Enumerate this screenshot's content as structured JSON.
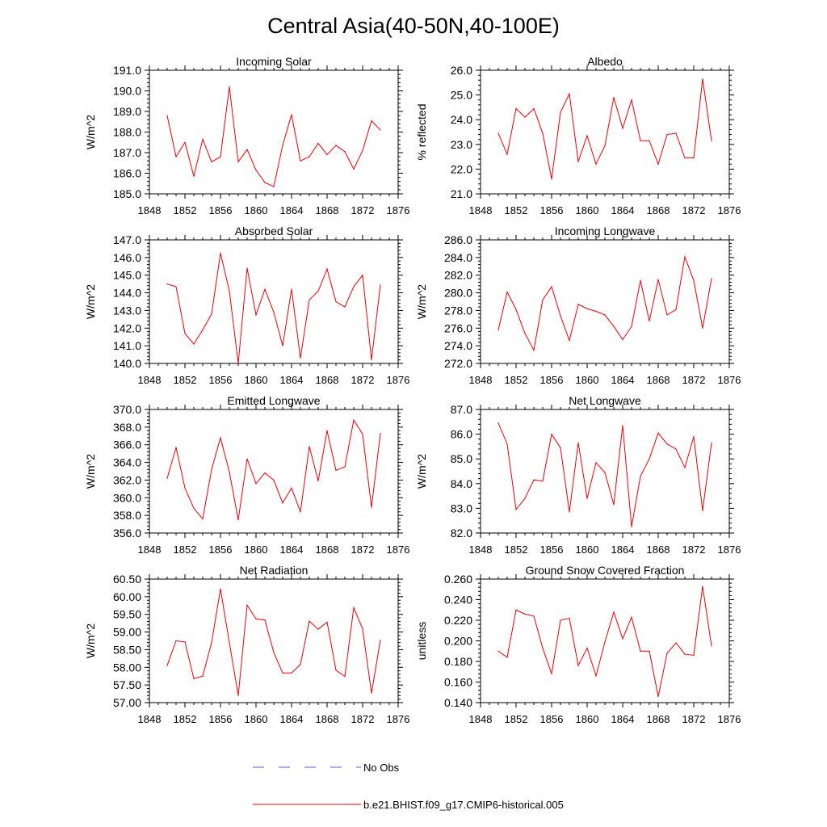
{
  "figure": {
    "title": "Central Asia(40-50N,40-100E)",
    "legend": {
      "obs_label": "No Obs",
      "model_label": "b.e21.BHIST.f09_g17.CMIP6-historical.005"
    },
    "colors": {
      "model_line": "#e8000b",
      "obs_line": "#5a5aff",
      "axis": "#000000"
    }
  },
  "chart_data": [
    {
      "type": "line",
      "title": "Incoming Solar",
      "xlabel": "",
      "ylabel": "W/m^2",
      "xlim": [
        1848,
        1876
      ],
      "xticks": [
        1848,
        1852,
        1856,
        1860,
        1864,
        1868,
        1872,
        1876
      ],
      "ylim": [
        185.0,
        191.0
      ],
      "yticks": [
        185.0,
        186.0,
        187.0,
        188.0,
        189.0,
        190.0,
        191.0
      ],
      "ytick_labels": [
        "185.0",
        "186.0",
        "187.0",
        "188.0",
        "189.0",
        "190.0",
        "191.0"
      ],
      "x": [
        1850,
        1851,
        1852,
        1853,
        1854,
        1855,
        1856,
        1857,
        1858,
        1859,
        1860,
        1861,
        1862,
        1863,
        1864,
        1865,
        1866,
        1867,
        1868,
        1869,
        1870,
        1871,
        1872,
        1873,
        1874
      ],
      "series": [
        {
          "name": "b.e21.BHIST.f09_g17.CMIP6-historical.005",
          "values": [
            188.8,
            186.8,
            187.5,
            185.85,
            187.65,
            186.55,
            186.8,
            190.2,
            186.55,
            187.15,
            186.15,
            185.55,
            185.35,
            187.35,
            188.85,
            186.6,
            186.8,
            187.45,
            186.9,
            187.35,
            187.05,
            186.2,
            187.1,
            188.55,
            188.1
          ]
        }
      ]
    },
    {
      "type": "line",
      "title": "Albedo",
      "xlabel": "",
      "ylabel": "% reflected",
      "xlim": [
        1848,
        1876
      ],
      "xticks": [
        1848,
        1852,
        1856,
        1860,
        1864,
        1868,
        1872,
        1876
      ],
      "ylim": [
        21.0,
        26.0
      ],
      "yticks": [
        21.0,
        22.0,
        23.0,
        24.0,
        25.0,
        26.0
      ],
      "ytick_labels": [
        "21.0",
        "22.0",
        "23.0",
        "24.0",
        "25.0",
        "26.0"
      ],
      "x": [
        1850,
        1851,
        1852,
        1853,
        1854,
        1855,
        1856,
        1857,
        1858,
        1859,
        1860,
        1861,
        1862,
        1863,
        1864,
        1865,
        1866,
        1867,
        1868,
        1869,
        1870,
        1871,
        1872,
        1873,
        1874
      ],
      "series": [
        {
          "name": "b.e21.BHIST.f09_g17.CMIP6-historical.005",
          "values": [
            23.45,
            22.6,
            24.45,
            24.1,
            24.45,
            23.45,
            21.6,
            24.3,
            25.05,
            22.3,
            23.35,
            22.2,
            22.95,
            24.9,
            23.65,
            24.8,
            23.15,
            23.15,
            22.2,
            23.4,
            23.45,
            22.45,
            22.45,
            25.65,
            23.15
          ]
        }
      ]
    },
    {
      "type": "line",
      "title": "Absorbed Solar",
      "xlabel": "",
      "ylabel": "W/m^2",
      "xlim": [
        1848,
        1876
      ],
      "xticks": [
        1848,
        1852,
        1856,
        1860,
        1864,
        1868,
        1872,
        1876
      ],
      "ylim": [
        140.0,
        147.0
      ],
      "yticks": [
        140.0,
        141.0,
        142.0,
        143.0,
        144.0,
        145.0,
        146.0,
        147.0
      ],
      "ytick_labels": [
        "140.0",
        "141.0",
        "142.0",
        "143.0",
        "144.0",
        "145.0",
        "146.0",
        "147.0"
      ],
      "x": [
        1850,
        1851,
        1852,
        1853,
        1854,
        1855,
        1856,
        1857,
        1858,
        1859,
        1860,
        1861,
        1862,
        1863,
        1864,
        1865,
        1866,
        1867,
        1868,
        1869,
        1870,
        1871,
        1872,
        1873,
        1874
      ],
      "series": [
        {
          "name": "b.e21.BHIST.f09_g17.CMIP6-historical.005",
          "values": [
            144.5,
            144.35,
            141.7,
            141.1,
            141.9,
            142.8,
            146.25,
            144.1,
            140.0,
            145.4,
            142.75,
            144.2,
            142.9,
            141.0,
            144.2,
            140.3,
            143.6,
            144.1,
            145.35,
            143.5,
            143.2,
            144.35,
            145.0,
            140.2,
            144.45
          ]
        }
      ]
    },
    {
      "type": "line",
      "title": "Incoming Longwave",
      "xlabel": "",
      "ylabel": "W/m^2",
      "xlim": [
        1848,
        1876
      ],
      "xticks": [
        1848,
        1852,
        1856,
        1860,
        1864,
        1868,
        1872,
        1876
      ],
      "ylim": [
        272.0,
        286.0
      ],
      "yticks": [
        272.0,
        274.0,
        276.0,
        278.0,
        280.0,
        282.0,
        284.0,
        286.0
      ],
      "ytick_labels": [
        "272.0",
        "274.0",
        "276.0",
        "278.0",
        "280.0",
        "282.0",
        "284.0",
        "286.0"
      ],
      "x": [
        1850,
        1851,
        1852,
        1853,
        1854,
        1855,
        1856,
        1857,
        1858,
        1859,
        1860,
        1861,
        1862,
        1863,
        1864,
        1865,
        1866,
        1867,
        1868,
        1869,
        1870,
        1871,
        1872,
        1873,
        1874
      ],
      "series": [
        {
          "name": "b.e21.BHIST.f09_g17.CMIP6-historical.005",
          "values": [
            275.8,
            280.1,
            278.1,
            275.4,
            273.5,
            279.2,
            280.7,
            277.4,
            274.6,
            278.7,
            278.2,
            277.9,
            277.5,
            276.2,
            274.7,
            276.2,
            281.4,
            276.8,
            281.5,
            277.5,
            278.1,
            284.1,
            281.4,
            276.0,
            281.6
          ]
        }
      ]
    },
    {
      "type": "line",
      "title": "Emitted Longwave",
      "xlabel": "",
      "ylabel": "W/m^2",
      "xlim": [
        1848,
        1876
      ],
      "xticks": [
        1848,
        1852,
        1856,
        1860,
        1864,
        1868,
        1872,
        1876
      ],
      "ylim": [
        356.0,
        370.0
      ],
      "yticks": [
        356.0,
        358.0,
        360.0,
        362.0,
        364.0,
        366.0,
        368.0,
        370.0
      ],
      "ytick_labels": [
        "356.0",
        "358.0",
        "360.0",
        "362.0",
        "364.0",
        "366.0",
        "368.0",
        "370.0"
      ],
      "x": [
        1850,
        1851,
        1852,
        1853,
        1854,
        1855,
        1856,
        1857,
        1858,
        1859,
        1860,
        1861,
        1862,
        1863,
        1864,
        1865,
        1866,
        1867,
        1868,
        1869,
        1870,
        1871,
        1872,
        1873,
        1874
      ],
      "series": [
        {
          "name": "b.e21.BHIST.f09_g17.CMIP6-historical.005",
          "values": [
            362.2,
            365.7,
            361.1,
            358.8,
            357.6,
            363.2,
            366.8,
            362.9,
            357.5,
            364.4,
            361.6,
            362.8,
            362.0,
            359.4,
            361.1,
            358.4,
            365.8,
            361.9,
            367.6,
            363.1,
            363.5,
            368.8,
            367.2,
            358.9,
            367.3
          ]
        }
      ]
    },
    {
      "type": "line",
      "title": "Net Longwave",
      "xlabel": "",
      "ylabel": "W/m^2",
      "xlim": [
        1848,
        1876
      ],
      "xticks": [
        1848,
        1852,
        1856,
        1860,
        1864,
        1868,
        1872,
        1876
      ],
      "ylim": [
        82.0,
        87.0
      ],
      "yticks": [
        82.0,
        83.0,
        84.0,
        85.0,
        86.0,
        87.0
      ],
      "ytick_labels": [
        "82.0",
        "83.0",
        "84.0",
        "85.0",
        "86.0",
        "87.0"
      ],
      "x": [
        1850,
        1851,
        1852,
        1853,
        1854,
        1855,
        1856,
        1857,
        1858,
        1859,
        1860,
        1861,
        1862,
        1863,
        1864,
        1865,
        1866,
        1867,
        1868,
        1869,
        1870,
        1871,
        1872,
        1873,
        1874
      ],
      "series": [
        {
          "name": "b.e21.BHIST.f09_g17.CMIP6-historical.005",
          "values": [
            86.45,
            85.6,
            82.95,
            83.4,
            84.15,
            84.1,
            86.0,
            85.45,
            82.85,
            85.65,
            83.4,
            84.85,
            84.45,
            83.15,
            86.35,
            82.25,
            84.3,
            85.0,
            86.05,
            85.6,
            85.4,
            84.65,
            85.9,
            82.9,
            85.65
          ]
        }
      ]
    },
    {
      "type": "line",
      "title": "Net Radiation",
      "xlabel": "",
      "ylabel": "W/m^2",
      "xlim": [
        1848,
        1876
      ],
      "xticks": [
        1848,
        1852,
        1856,
        1860,
        1864,
        1868,
        1872,
        1876
      ],
      "ylim": [
        57.0,
        60.5
      ],
      "yticks": [
        57.0,
        57.5,
        58.0,
        58.5,
        59.0,
        59.5,
        60.0,
        60.5
      ],
      "ytick_labels": [
        "57.00",
        "57.50",
        "58.00",
        "58.50",
        "59.00",
        "59.50",
        "60.00",
        "60.50"
      ],
      "x": [
        1850,
        1851,
        1852,
        1853,
        1854,
        1855,
        1856,
        1857,
        1858,
        1859,
        1860,
        1861,
        1862,
        1863,
        1864,
        1865,
        1866,
        1867,
        1868,
        1869,
        1870,
        1871,
        1872,
        1873,
        1874
      ],
      "series": [
        {
          "name": "b.e21.BHIST.f09_g17.CMIP6-historical.005",
          "values": [
            58.05,
            58.75,
            58.72,
            57.68,
            57.75,
            58.7,
            60.22,
            58.7,
            57.2,
            59.76,
            59.37,
            59.34,
            58.42,
            57.84,
            57.84,
            58.08,
            59.31,
            59.08,
            59.28,
            57.92,
            57.74,
            59.69,
            59.09,
            57.27,
            58.77
          ]
        }
      ]
    },
    {
      "type": "line",
      "title": "Ground Snow Covered Fraction",
      "xlabel": "",
      "ylabel": "unitless",
      "xlim": [
        1848,
        1876
      ],
      "xticks": [
        1848,
        1852,
        1856,
        1860,
        1864,
        1868,
        1872,
        1876
      ],
      "ylim": [
        0.14,
        0.26
      ],
      "yticks": [
        0.14,
        0.16,
        0.18,
        0.2,
        0.22,
        0.24,
        0.26
      ],
      "ytick_labels": [
        "0.140",
        "0.160",
        "0.180",
        "0.200",
        "0.220",
        "0.240",
        "0.260"
      ],
      "x": [
        1850,
        1851,
        1852,
        1853,
        1854,
        1855,
        1856,
        1857,
        1858,
        1859,
        1860,
        1861,
        1862,
        1863,
        1864,
        1865,
        1866,
        1867,
        1868,
        1869,
        1870,
        1871,
        1872,
        1873,
        1874
      ],
      "series": [
        {
          "name": "b.e21.BHIST.f09_g17.CMIP6-historical.005",
          "values": [
            0.19,
            0.184,
            0.23,
            0.226,
            0.224,
            0.193,
            0.168,
            0.22,
            0.222,
            0.176,
            0.193,
            0.166,
            0.199,
            0.228,
            0.202,
            0.223,
            0.19,
            0.19,
            0.146,
            0.188,
            0.198,
            0.187,
            0.186,
            0.253,
            0.195
          ]
        }
      ]
    }
  ]
}
